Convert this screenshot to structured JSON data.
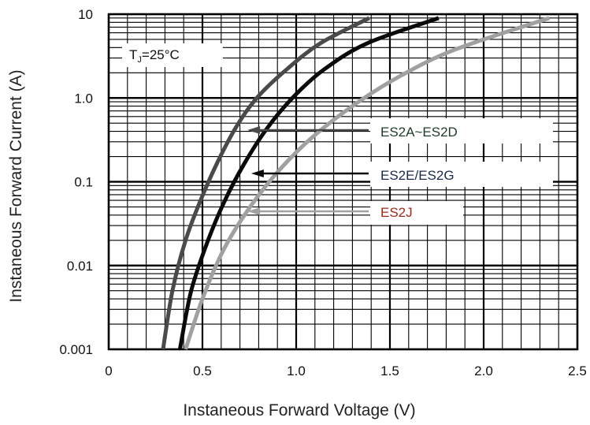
{
  "chart_data": {
    "type": "line",
    "title": "",
    "xlabel": "Instaneous Forward Voltage (V)",
    "ylabel": "Instaneous Forward Current (A)",
    "xlim": [
      0,
      2.5
    ],
    "ylim": [
      0.001,
      10
    ],
    "yscale": "log",
    "grid": true,
    "x_ticks": [
      "0",
      "0.5",
      "1.0",
      "1.5",
      "2.0",
      "2.5"
    ],
    "y_ticks": [
      "0.001",
      "0.01",
      "0.1",
      "1.0",
      "10"
    ],
    "condition_label": {
      "main": "T",
      "sub": "J",
      "rest": "=25°C"
    },
    "series": [
      {
        "name": "ES2A~ES2D",
        "color": "#4a4a4a",
        "label_color": "#1f3b2a",
        "points": [
          [
            0.29,
            0.001
          ],
          [
            0.34,
            0.005
          ],
          [
            0.41,
            0.02
          ],
          [
            0.49,
            0.06
          ],
          [
            0.58,
            0.17
          ],
          [
            0.68,
            0.45
          ],
          [
            0.79,
            1.0
          ],
          [
            0.95,
            2.2
          ],
          [
            1.13,
            4.5
          ],
          [
            1.39,
            9.0
          ]
        ],
        "arrow_at": [
          0.74,
          0.55
        ]
      },
      {
        "name": "ES2E/ES2G",
        "color": "#0a0a0a",
        "label_color": "#1a2a4a",
        "points": [
          [
            0.38,
            0.001
          ],
          [
            0.44,
            0.005
          ],
          [
            0.53,
            0.02
          ],
          [
            0.62,
            0.06
          ],
          [
            0.72,
            0.16
          ],
          [
            0.84,
            0.42
          ],
          [
            0.98,
            1.0
          ],
          [
            1.15,
            2.2
          ],
          [
            1.38,
            4.5
          ],
          [
            1.76,
            9.0
          ]
        ],
        "arrow_at": [
          0.76,
          0.13
        ]
      },
      {
        "name": "ES2J",
        "color": "#a0a0a0",
        "label_color": "#a02818",
        "points": [
          [
            0.41,
            0.001
          ],
          [
            0.5,
            0.004
          ],
          [
            0.61,
            0.015
          ],
          [
            0.74,
            0.045
          ],
          [
            0.9,
            0.13
          ],
          [
            1.08,
            0.33
          ],
          [
            1.3,
            0.8
          ],
          [
            1.55,
            1.8
          ],
          [
            1.85,
            3.8
          ],
          [
            2.35,
            9.0
          ]
        ],
        "arrow_at": [
          0.74,
          0.045
        ]
      }
    ]
  }
}
